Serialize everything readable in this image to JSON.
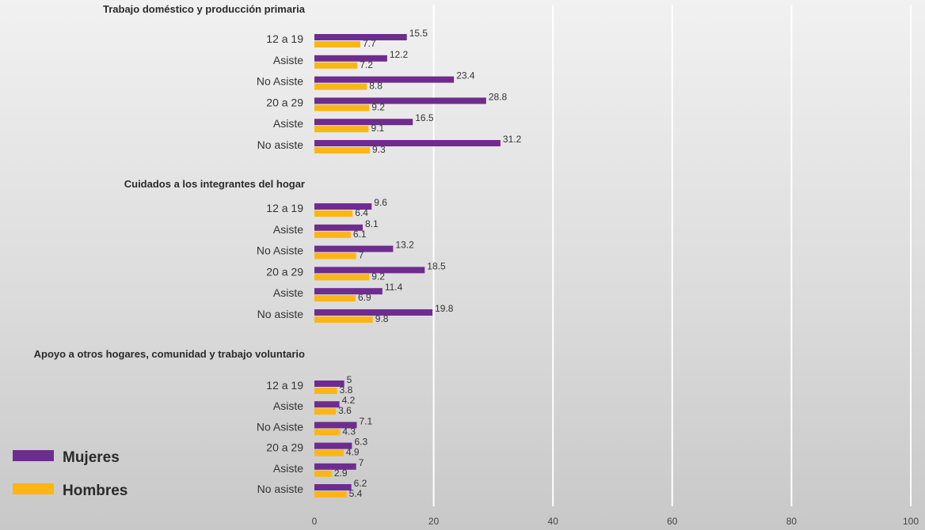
{
  "chart_data": {
    "type": "bar",
    "orientation": "horizontal",
    "xlim": [
      0,
      100
    ],
    "x_ticks": [
      "0",
      "20",
      "40",
      "60",
      "80",
      "100"
    ],
    "grid": true,
    "legend_position": "bottom-left",
    "series": [
      {
        "name": "Mujeres",
        "color": "#6f2c8f"
      },
      {
        "name": "Hombres",
        "color": "#fbb615"
      }
    ],
    "groups": [
      {
        "title": "Trabajo doméstico y producción primaria",
        "categories": [
          "12 a 19",
          "Asiste",
          "No Asiste",
          "20 a 29",
          "Asiste",
          "No asiste"
        ],
        "Mujeres": [
          15.5,
          12.2,
          23.4,
          28.8,
          16.5,
          31.2
        ],
        "Hombres": [
          7.7,
          7.2,
          8.8,
          9.2,
          9.1,
          9.3
        ]
      },
      {
        "title": "Cuidados a los integrantes del hogar",
        "categories": [
          "12 a 19",
          "Asiste",
          "No Asiste",
          "20 a 29",
          "Asiste",
          "No asiste"
        ],
        "Mujeres": [
          9.6,
          8.1,
          13.2,
          18.5,
          11.4,
          19.8
        ],
        "Hombres": [
          6.4,
          6.1,
          7,
          9.2,
          6.9,
          9.8
        ]
      },
      {
        "title": "Apoyo a otros hogares, comunidad y trabajo voluntario",
        "categories": [
          "12 a 19",
          "Asiste",
          "No Asiste",
          "20 a 29",
          "Asiste",
          "No asiste"
        ],
        "Mujeres": [
          5,
          4.2,
          7.1,
          6.3,
          7,
          6.2
        ],
        "Hombres": [
          3.8,
          3.6,
          4.3,
          4.9,
          2.9,
          5.4
        ]
      }
    ]
  }
}
